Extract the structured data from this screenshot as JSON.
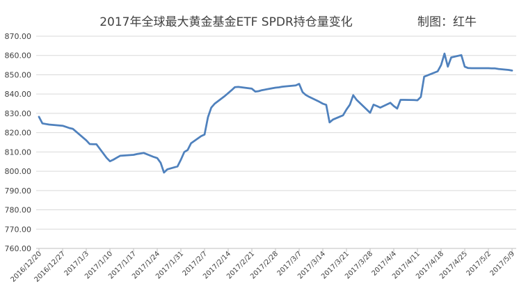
{
  "chart_data": {
    "type": "line",
    "title": "2017年全球最大黄金基金ETF SPDR持仓量变化",
    "credit": "制图：红牛",
    "xlabel": "",
    "ylabel": "",
    "ylim": [
      760,
      870
    ],
    "ytick_labels": [
      "870.00",
      "860.00",
      "850.00",
      "840.00",
      "830.00",
      "820.00",
      "810.00",
      "800.00",
      "790.00",
      "780.00",
      "770.00",
      "760.00"
    ],
    "xtick_labels": [
      "2016/12/20",
      "2016/12/27",
      "2017/1/3",
      "2017/1/10",
      "2017/1/17",
      "2017/1/24",
      "2017/1/31",
      "2017/2/7",
      "2017/2/14",
      "2017/2/21",
      "2017/2/28",
      "2017/3/7",
      "2017/3/14",
      "2017/3/21",
      "2017/3/28",
      "2017/4/4",
      "2017/4/11",
      "2017/4/18",
      "2017/4/25",
      "2017/5/2",
      "2017/5/9"
    ],
    "grid": true,
    "legend": "none",
    "line_color": "#4f81bd",
    "series": [
      {
        "x": [
          "2016/12/20",
          "2016/12/21",
          "2016/12/22",
          "2016/12/23",
          "2016/12/27",
          "2016/12/28",
          "2016/12/29",
          "2016/12/30",
          "2017/1/3",
          "2017/1/4",
          "2017/1/5",
          "2017/1/6",
          "2017/1/9",
          "2017/1/10",
          "2017/1/11",
          "2017/1/12",
          "2017/1/13",
          "2017/1/17",
          "2017/1/18",
          "2017/1/19",
          "2017/1/20",
          "2017/1/23",
          "2017/1/24",
          "2017/1/25",
          "2017/1/26",
          "2017/1/27",
          "2017/1/30",
          "2017/1/31",
          "2017/2/1",
          "2017/2/2",
          "2017/2/3",
          "2017/2/6",
          "2017/2/7",
          "2017/2/8",
          "2017/2/9",
          "2017/2/10",
          "2017/2/13",
          "2017/2/14",
          "2017/2/15",
          "2017/2/16",
          "2017/2/17",
          "2017/2/21",
          "2017/2/22",
          "2017/2/23",
          "2017/2/24",
          "2017/2/27",
          "2017/2/28",
          "2017/3/1",
          "2017/3/2",
          "2017/3/3",
          "2017/3/6",
          "2017/3/7",
          "2017/3/8",
          "2017/3/9",
          "2017/3/10",
          "2017/3/13",
          "2017/3/14",
          "2017/3/15",
          "2017/3/16",
          "2017/3/17",
          "2017/3/20",
          "2017/3/21",
          "2017/3/22",
          "2017/3/23",
          "2017/3/24",
          "2017/3/27",
          "2017/3/28",
          "2017/3/29",
          "2017/3/30",
          "2017/3/31",
          "2017/4/3",
          "2017/4/4",
          "2017/4/5",
          "2017/4/6",
          "2017/4/7",
          "2017/4/10",
          "2017/4/11",
          "2017/4/12",
          "2017/4/13",
          "2017/4/17",
          "2017/4/18",
          "2017/4/19",
          "2017/4/20",
          "2017/4/21",
          "2017/4/24",
          "2017/4/25",
          "2017/4/26",
          "2017/4/27",
          "2017/4/28",
          "2017/5/1",
          "2017/5/2",
          "2017/5/3",
          "2017/5/4",
          "2017/5/5",
          "2017/5/8",
          "2017/5/9"
        ],
        "y": [
          828.2,
          824.8,
          824.5,
          824.2,
          823.6,
          823.0,
          822.4,
          822.0,
          816.0,
          814.1,
          814.0,
          814.0,
          807.0,
          805.2,
          806.0,
          807.0,
          808.0,
          808.5,
          808.9,
          809.2,
          809.5,
          807.4,
          806.8,
          804.4,
          799.3,
          801.0,
          802.5,
          806.0,
          810.0,
          811.0,
          814.5,
          818.2,
          819.0,
          828.0,
          833.0,
          835.0,
          839.0,
          840.5,
          842.0,
          843.6,
          843.7,
          842.8,
          841.3,
          841.5,
          842.0,
          843.0,
          843.3,
          843.5,
          843.8,
          844.0,
          844.5,
          845.3,
          841.0,
          839.5,
          838.5,
          836.0,
          835.0,
          834.4,
          825.3,
          826.8,
          829.0,
          832.0,
          834.5,
          839.4,
          837.0,
          832.0,
          830.3,
          834.5,
          833.8,
          833.0,
          835.5,
          833.8,
          832.5,
          837.0,
          837.0,
          836.9,
          836.8,
          838.5,
          849.0,
          851.8,
          855.0,
          861.0,
          854.2,
          859.0,
          860.2,
          854.2,
          853.5,
          853.4,
          853.4,
          853.4,
          853.4,
          853.3,
          853.3,
          853.0,
          852.5,
          852.2
        ]
      }
    ]
  }
}
